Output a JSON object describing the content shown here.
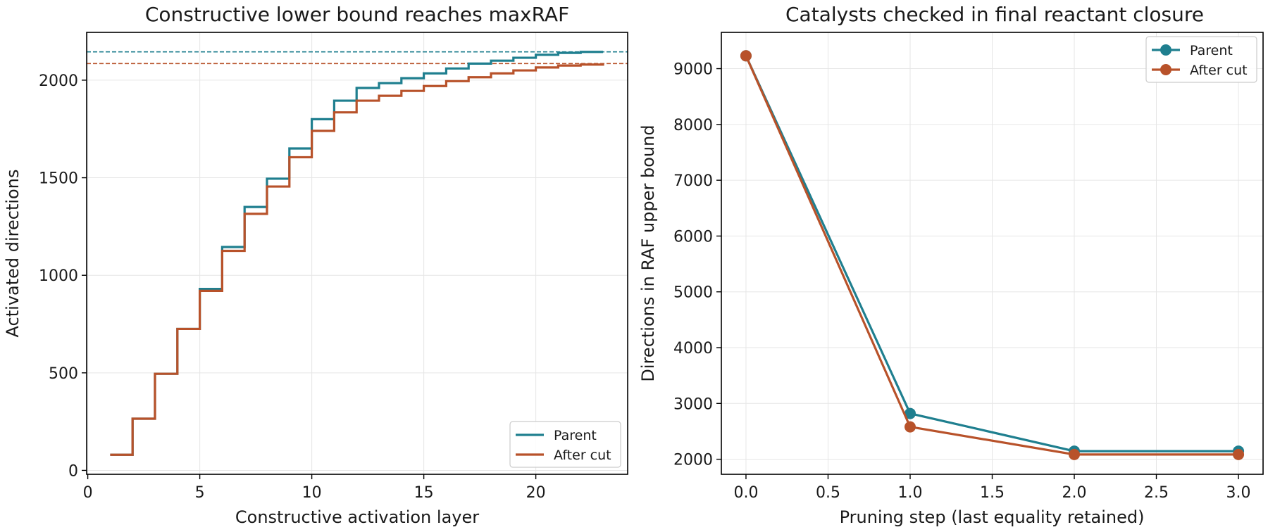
{
  "colors": {
    "parent": "#1f7f8f",
    "after_cut": "#b8522a"
  },
  "chart_data": [
    {
      "type": "line",
      "style": "step",
      "title": "Constructive lower bound reaches maxRAF",
      "xlabel": "Constructive activation layer",
      "ylabel": "Activated directions",
      "xlim": [
        -0.05,
        24.1
      ],
      "ylim": [
        -20,
        2245
      ],
      "xticks": [
        0,
        5,
        10,
        15,
        20
      ],
      "yticks": [
        0,
        500,
        1000,
        1500,
        2000
      ],
      "grid": true,
      "legend_position": "lower-right",
      "x": [
        1,
        2,
        3,
        4,
        5,
        6,
        7,
        8,
        9,
        10,
        11,
        12,
        13,
        14,
        15,
        16,
        17,
        18,
        19,
        20,
        21,
        22,
        23
      ],
      "series": [
        {
          "name": "Parent",
          "color_key": "parent",
          "values": [
            80,
            265,
            495,
            725,
            930,
            1145,
            1350,
            1495,
            1650,
            1800,
            1895,
            1960,
            1985,
            2010,
            2035,
            2060,
            2085,
            2100,
            2115,
            2130,
            2140,
            2145,
            2145
          ],
          "reference_line": 2145
        },
        {
          "name": "After cut",
          "color_key": "after_cut",
          "values": [
            80,
            265,
            495,
            725,
            920,
            1125,
            1315,
            1455,
            1605,
            1740,
            1835,
            1895,
            1920,
            1945,
            1970,
            1995,
            2015,
            2035,
            2050,
            2065,
            2075,
            2080,
            2085
          ],
          "reference_line": 2085
        }
      ]
    },
    {
      "type": "line",
      "title": "Catalysts checked in final reactant closure",
      "xlabel": "Pruning step (last equality retained)",
      "ylabel": "Directions in RAF upper bound",
      "xlim": [
        -0.15,
        3.15
      ],
      "ylim": [
        1730,
        9650
      ],
      "xticks": [
        0.0,
        0.5,
        1.0,
        1.5,
        2.0,
        2.5,
        3.0
      ],
      "xtick_labels": [
        "0.0",
        "0.5",
        "1.0",
        "1.5",
        "2.0",
        "2.5",
        "3.0"
      ],
      "yticks": [
        2000,
        3000,
        4000,
        5000,
        6000,
        7000,
        8000,
        9000
      ],
      "grid": true,
      "legend_position": "top-right",
      "x": [
        0,
        1,
        2,
        3
      ],
      "series": [
        {
          "name": "Parent",
          "color_key": "parent",
          "values": [
            9230,
            2820,
            2145,
            2145
          ]
        },
        {
          "name": "After cut",
          "color_key": "after_cut",
          "values": [
            9230,
            2580,
            2085,
            2085
          ]
        }
      ]
    }
  ]
}
